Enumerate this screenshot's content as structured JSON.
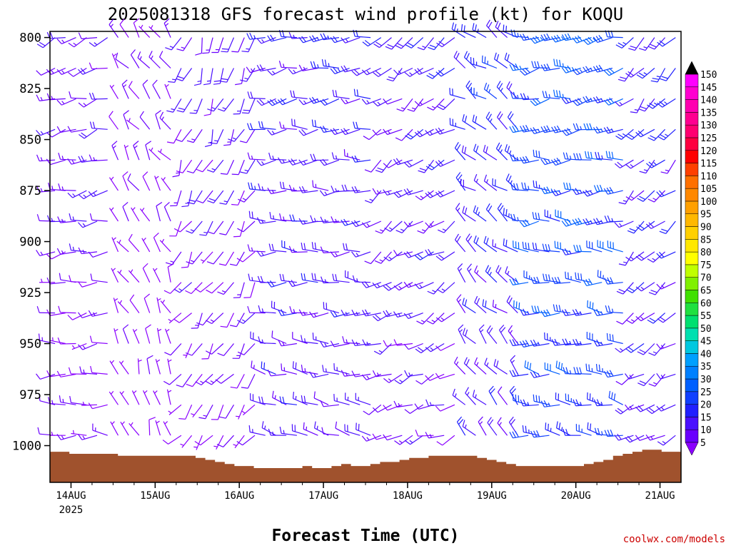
{
  "chart_data": {
    "type": "wind-barb",
    "title": "2025081318 GFS forecast wind profile (kt) for KOQU",
    "xlabel": "Forecast Time (UTC)",
    "credit": "coolwx.com/models",
    "y_ticks": [
      800,
      825,
      850,
      875,
      900,
      925,
      950,
      975,
      1000
    ],
    "ylim": [
      1018,
      797
    ],
    "y_levels_mb": [
      800,
      815,
      830,
      845,
      860,
      875,
      890,
      905,
      920,
      935,
      950,
      965,
      980,
      995,
      1010
    ],
    "x_ticks": [
      "14AUG",
      "15AUG",
      "16AUG",
      "17AUG",
      "18AUG",
      "19AUG",
      "20AUG",
      "21AUG"
    ],
    "x_year": "2025",
    "x_start_day": 13.75,
    "x_end_day": 21.25,
    "colorbar_levels": [
      5,
      10,
      15,
      20,
      25,
      30,
      35,
      40,
      45,
      50,
      55,
      60,
      65,
      70,
      75,
      80,
      85,
      90,
      95,
      100,
      105,
      110,
      115,
      120,
      125,
      130,
      135,
      140,
      145,
      150
    ],
    "colorbar_colors": [
      "#8a00ff",
      "#6a00ff",
      "#4a10ff",
      "#2020ff",
      "#1040ff",
      "#0060ff",
      "#0080ff",
      "#00a0ff",
      "#00c8e0",
      "#00e0b0",
      "#00e070",
      "#20e040",
      "#40e000",
      "#80f000",
      "#c0ff00",
      "#ffff00",
      "#ffe800",
      "#ffd000",
      "#ffb800",
      "#ffa000",
      "#ff8800",
      "#ff7000",
      "#ff4000",
      "#ff0000",
      "#ff0040",
      "#ff0070",
      "#ff0090",
      "#ff00b0",
      "#ff00d0",
      "#ff00ff"
    ],
    "surface_pressure_mb": [
      1003,
      1003,
      1004,
      1004,
      1004,
      1004,
      1004,
      1005,
      1005,
      1005,
      1005,
      1005,
      1005,
      1005,
      1005,
      1006,
      1007,
      1008,
      1009,
      1010,
      1010,
      1011,
      1011,
      1011,
      1011,
      1011,
      1010,
      1011,
      1011,
      1010,
      1009,
      1010,
      1010,
      1009,
      1008,
      1008,
      1007,
      1006,
      1006,
      1005,
      1005,
      1005,
      1005,
      1005,
      1006,
      1007,
      1008,
      1009,
      1010,
      1010,
      1010,
      1010,
      1010,
      1010,
      1010,
      1009,
      1008,
      1007,
      1005,
      1004,
      1003,
      1002,
      1002,
      1003,
      1003
    ],
    "wind_regimes": [
      {
        "from_day": 13.75,
        "to_day": 14.5,
        "dir_deg": 250,
        "speed_kt": 15
      },
      {
        "from_day": 14.5,
        "to_day": 15.2,
        "dir_deg": 320,
        "speed_kt": 10
      },
      {
        "from_day": 15.2,
        "to_day": 16.2,
        "dir_deg": 200,
        "speed_kt": 15
      },
      {
        "from_day": 16.2,
        "to_day": 17.6,
        "dir_deg": 260,
        "speed_kt": 20
      },
      {
        "from_day": 17.6,
        "to_day": 18.6,
        "dir_deg": 230,
        "speed_kt": 18
      },
      {
        "from_day": 18.6,
        "to_day": 19.4,
        "dir_deg": 300,
        "speed_kt": 22
      },
      {
        "from_day": 19.4,
        "to_day": 20.6,
        "dir_deg": 260,
        "speed_kt": 30
      },
      {
        "from_day": 20.6,
        "to_day": 21.25,
        "dir_deg": 220,
        "speed_kt": 20
      }
    ]
  }
}
